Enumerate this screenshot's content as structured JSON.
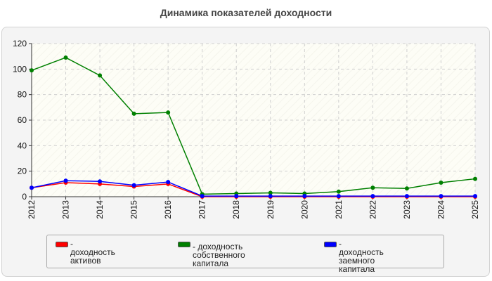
{
  "chart_data": {
    "type": "line",
    "title": "Динамика показателей доходности",
    "xlabel": "",
    "ylabel": "",
    "categories": [
      "2012",
      "2013",
      "2014",
      "2015",
      "2016",
      "2017",
      "2018",
      "2019",
      "2020",
      "2021",
      "2022",
      "2023",
      "2024",
      "2025"
    ],
    "ylim": [
      0,
      120
    ],
    "yticks": [
      0,
      20,
      40,
      60,
      80,
      100,
      120
    ],
    "grid": true,
    "legend_position": "bottom",
    "series": [
      {
        "name": "- доходность активов",
        "color": "#ff0000",
        "values": [
          7,
          11,
          10,
          8,
          10,
          0,
          0,
          0,
          0,
          0,
          0,
          0,
          0,
          0
        ]
      },
      {
        "name": "- доходность собственного капитала",
        "color": "#008000",
        "values": [
          99,
          109,
          95,
          65,
          66,
          2,
          2.5,
          3,
          2.5,
          4,
          7,
          6.5,
          11,
          14
        ]
      },
      {
        "name": "- доходность заемного капитала",
        "color": "#0000ff",
        "values": [
          7,
          12.5,
          12,
          9,
          11.5,
          0.5,
          0.5,
          0.5,
          0.5,
          0.5,
          0.5,
          0.5,
          0.5,
          0.5
        ]
      }
    ]
  },
  "legend": {
    "items": [
      {
        "text_line1": "- доходность активов",
        "text_line2": "",
        "color": "#ff0000"
      },
      {
        "text_line1": "- доходность собственного",
        "text_line2": "капитала",
        "color": "#008000"
      },
      {
        "text_line1": "- доходность заемного",
        "text_line2": "капитала",
        "color": "#0000ff"
      }
    ]
  }
}
